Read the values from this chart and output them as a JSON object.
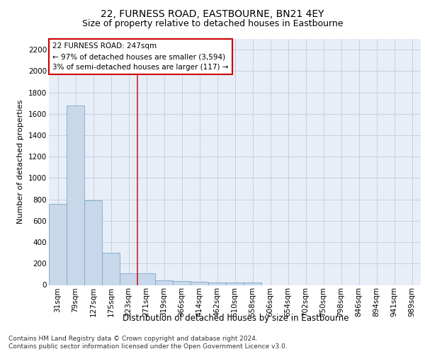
{
  "title1": "22, FURNESS ROAD, EASTBOURNE, BN21 4EY",
  "title2": "Size of property relative to detached houses in Eastbourne",
  "xlabel": "Distribution of detached houses by size in Eastbourne",
  "ylabel": "Number of detached properties",
  "bin_labels": [
    "31sqm",
    "79sqm",
    "127sqm",
    "175sqm",
    "223sqm",
    "271sqm",
    "319sqm",
    "366sqm",
    "414sqm",
    "462sqm",
    "510sqm",
    "558sqm",
    "606sqm",
    "654sqm",
    "702sqm",
    "750sqm",
    "798sqm",
    "846sqm",
    "894sqm",
    "941sqm",
    "989sqm"
  ],
  "bar_values": [
    760,
    1680,
    790,
    300,
    110,
    110,
    45,
    35,
    30,
    25,
    25,
    20,
    0,
    0,
    0,
    0,
    0,
    0,
    0,
    0,
    0
  ],
  "bar_color": "#c8d8ea",
  "bar_edge_color": "#7aa8c8",
  "property_line_x": 4.5,
  "annotation_title": "22 FURNESS ROAD: 247sqm",
  "annotation_line1": "← 97% of detached houses are smaller (3,594)",
  "annotation_line2": "3% of semi-detached houses are larger (117) →",
  "annotation_box_facecolor": "#ffffff",
  "annotation_box_edgecolor": "#cc0000",
  "vline_color": "#cc2222",
  "ylim": [
    0,
    2300
  ],
  "yticks": [
    0,
    200,
    400,
    600,
    800,
    1000,
    1200,
    1400,
    1600,
    1800,
    2000,
    2200
  ],
  "grid_color": "#c0ccd8",
  "bg_color": "#e8eef8",
  "footer1": "Contains HM Land Registry data © Crown copyright and database right 2024.",
  "footer2": "Contains public sector information licensed under the Open Government Licence v3.0.",
  "title1_fontsize": 10,
  "title2_fontsize": 9,
  "ylabel_fontsize": 8,
  "xlabel_fontsize": 8.5,
  "tick_fontsize": 7.5,
  "footer_fontsize": 6.5,
  "annot_fontsize": 7.5
}
